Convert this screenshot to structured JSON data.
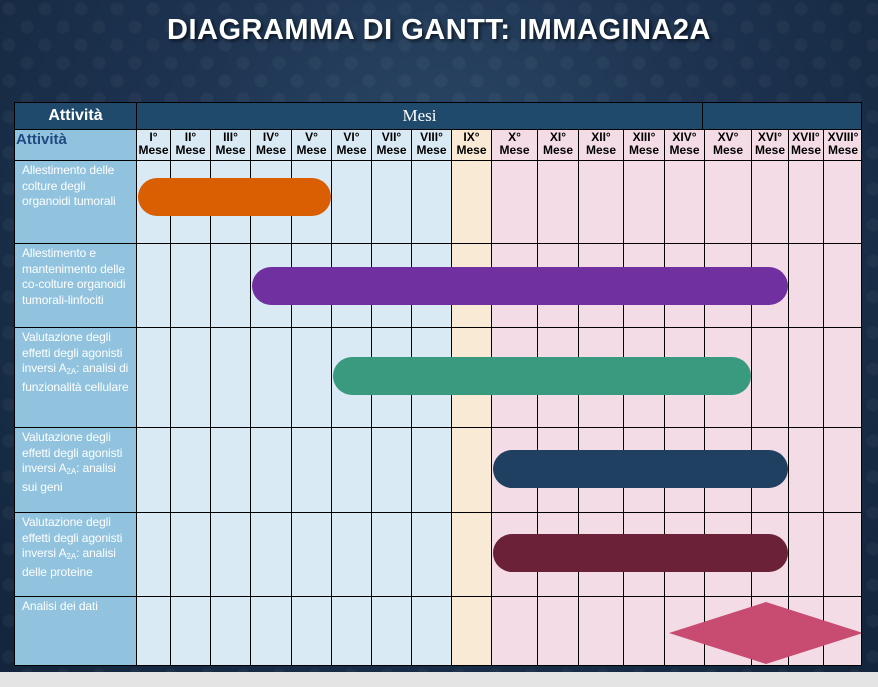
{
  "title": "DIAGRAMMA DI GANTT: IMMAGINA2A",
  "header": {
    "activity_label": "Attività",
    "months_label": "Mesi",
    "activity_column": "Attività"
  },
  "months": [
    {
      "num": "I°",
      "label": "Mese"
    },
    {
      "num": "II°",
      "label": "Mese"
    },
    {
      "num": "III°",
      "label": "Mese"
    },
    {
      "num": "IV°",
      "label": "Mese"
    },
    {
      "num": "V°",
      "label": "Mese"
    },
    {
      "num": "VI°",
      "label": "Mese"
    },
    {
      "num": "VII°",
      "label": "Mese"
    },
    {
      "num": "VIII°",
      "label": "Mese"
    },
    {
      "num": "IX°",
      "label": "Mese"
    },
    {
      "num": "X°",
      "label": "Mese"
    },
    {
      "num": "XI°",
      "label": "Mese"
    },
    {
      "num": "XII°",
      "label": "Mese"
    },
    {
      "num": "XIII°",
      "label": "Mese"
    },
    {
      "num": "XIV°",
      "label": "Mese"
    },
    {
      "num": "XV°",
      "label": "Mese"
    },
    {
      "num": "XVI°",
      "label": "Mese"
    },
    {
      "num": "XVII°",
      "label": "Mese"
    },
    {
      "num": "XVIII°",
      "label": "Mese"
    }
  ],
  "colors": {
    "header_dark": "#1f4a6b",
    "activity_column": "#91c3df",
    "months_1_8": "#d9eaf5",
    "month_9": "#f9ead6",
    "months_10_18": "#f4dce6"
  },
  "chart_data": {
    "type": "gantt",
    "title": "DIAGRAMMA DI GANTT: IMMAGINA2A",
    "unit": "month",
    "tasks": [
      {
        "name": "Allestimento delle colture degli organoidi tumorali",
        "start_month": 1,
        "end_month": 5,
        "color": "#d95f02",
        "shape": "bar"
      },
      {
        "name": "Allestimento e mantenimento delle co-colture organoidi tumorali-linfociti",
        "start_month": 4,
        "end_month": 16,
        "color": "#7030a0",
        "shape": "bar"
      },
      {
        "name": "Valutazione degli effetti degli agonisti inversi A2A: analisi di funzionalità cellulare",
        "start_month": 6,
        "end_month": 15,
        "color": "#3a9a80",
        "shape": "bar"
      },
      {
        "name": "Valutazione degli effetti degli agonisti inversi A2A: analisi sui geni",
        "start_month": 10,
        "end_month": 16,
        "color": "#1f4060",
        "shape": "bar"
      },
      {
        "name": "Valutazione degli effetti degli agonisti inversi A2A: analisi delle proteine",
        "start_month": 10,
        "end_month": 16,
        "color": "#6b2238",
        "shape": "bar"
      },
      {
        "name": "Analisi dei dati",
        "start_month": 15,
        "end_month": 18,
        "color": "#c84b72",
        "shape": "diamond"
      }
    ]
  }
}
